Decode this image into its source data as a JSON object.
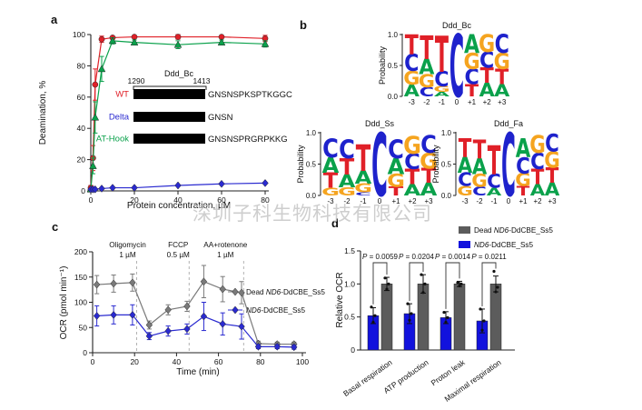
{
  "watermark": "深圳子科生物科技有限公司",
  "panel_labels": {
    "a": "a",
    "b": "b",
    "c": "c",
    "d": "d"
  },
  "panels": {
    "a": {
      "inset": {
        "title": "Ddd_Bc",
        "start": "1290",
        "end": "1413",
        "rows": [
          {
            "label": "WT",
            "color": "#e02028",
            "sequence": "GNSNSPKSPTKGGC"
          },
          {
            "label": "Delta",
            "color": "#2a2ad0",
            "sequence": "GNSN"
          },
          {
            "label": "AT-Hook",
            "color": "#0aa14b",
            "sequence": "GNSNSPRGRPKKG"
          }
        ]
      }
    }
  },
  "chart_data": [
    {
      "id": "a",
      "type": "line",
      "xlabel": "Protein concentration, µM",
      "ylabel": "Deamination, %",
      "xlim": [
        0,
        80
      ],
      "ylim": [
        0,
        100
      ],
      "xticks": [
        0,
        20,
        40,
        60,
        80
      ],
      "yticks": [
        0,
        20,
        40,
        60,
        80,
        100
      ],
      "x": [
        0,
        1,
        2,
        5,
        10,
        20,
        40,
        60,
        80
      ],
      "series": [
        {
          "name": "WT",
          "color": "#e02028",
          "marker": "circle",
          "values": [
            2,
            21,
            68,
            97,
            98,
            98.5,
            98.5,
            98.5,
            97.5
          ],
          "errors": [
            1.5,
            8,
            10,
            2,
            1,
            1,
            1.5,
            1,
            2
          ]
        },
        {
          "name": "AT-Hook",
          "color": "#0aa14b",
          "marker": "triangle",
          "values": [
            1,
            16,
            47,
            78,
            96,
            95,
            93.5,
            95,
            94
          ],
          "errors": [
            1,
            5,
            10,
            8,
            2,
            1.5,
            2.5,
            1.5,
            2
          ]
        },
        {
          "name": "Delta",
          "color": "#2a2ad0",
          "marker": "diamond",
          "values": [
            1,
            1,
            1,
            1.5,
            2,
            2,
            3.5,
            4.5,
            5
          ],
          "errors": [
            0.5,
            0.5,
            0.5,
            0.5,
            0.5,
            0.5,
            0.5,
            0.5,
            0.5
          ]
        }
      ]
    },
    {
      "id": "b1",
      "type": "logo",
      "title": "Ddd_Bc",
      "ylabel": "Probability",
      "yticks": [
        "1.0",
        "0.5",
        "0.0"
      ],
      "positions": [
        "-3",
        "-2",
        "-1",
        "0",
        "+1",
        "+2",
        "+3"
      ],
      "stacks": [
        [
          [
            "T",
            0.32
          ],
          [
            "C",
            0.27
          ],
          [
            "G",
            0.22
          ],
          [
            "A",
            0.19
          ]
        ],
        [
          [
            "T",
            0.38
          ],
          [
            "A",
            0.24
          ],
          [
            "G",
            0.21
          ],
          [
            "C",
            0.15
          ]
        ],
        [
          [
            "T",
            0.58
          ],
          [
            "C",
            0.24
          ],
          [
            "G",
            0.09
          ],
          [
            "A",
            0.07
          ]
        ],
        [
          [
            "C",
            1.0
          ]
        ],
        [
          [
            "A",
            0.3
          ],
          [
            "G",
            0.26
          ],
          [
            "C",
            0.24
          ],
          [
            "T",
            0.2
          ]
        ],
        [
          [
            "G",
            0.28
          ],
          [
            "C",
            0.26
          ],
          [
            "T",
            0.24
          ],
          [
            "A",
            0.22
          ]
        ],
        [
          [
            "C",
            0.3
          ],
          [
            "G",
            0.26
          ],
          [
            "T",
            0.24
          ],
          [
            "A",
            0.2
          ]
        ]
      ]
    },
    {
      "id": "b2",
      "type": "logo",
      "title": "Ddd_Ss",
      "ylabel": "Probability",
      "yticks": [
        "1.0",
        "0.5",
        "0.0"
      ],
      "positions": [
        "-3",
        "-2",
        "-1",
        "0",
        "+1",
        "+2",
        "+3"
      ],
      "stacks": [
        [
          [
            "C",
            0.3
          ],
          [
            "A",
            0.24
          ],
          [
            "T",
            0.24
          ],
          [
            "G",
            0.12
          ]
        ],
        [
          [
            "C",
            0.3
          ],
          [
            "T",
            0.26
          ],
          [
            "A",
            0.2
          ],
          [
            "G",
            0.13
          ]
        ],
        [
          [
            "T",
            0.42
          ],
          [
            "A",
            0.2
          ],
          [
            "G",
            0.14
          ],
          [
            "C",
            0.05
          ]
        ],
        [
          [
            "C",
            1.0
          ]
        ],
        [
          [
            "C",
            0.3
          ],
          [
            "A",
            0.25
          ],
          [
            "G",
            0.2
          ],
          [
            "T",
            0.14
          ]
        ],
        [
          [
            "G",
            0.28
          ],
          [
            "C",
            0.25
          ],
          [
            "T",
            0.24
          ],
          [
            "A",
            0.18
          ]
        ],
        [
          [
            "C",
            0.28
          ],
          [
            "G",
            0.25
          ],
          [
            "T",
            0.23
          ],
          [
            "A",
            0.2
          ]
        ]
      ]
    },
    {
      "id": "b3",
      "type": "logo",
      "title": "Ddd_Fa",
      "ylabel": "Probability",
      "yticks": [
        "1.0",
        "0.5",
        "0.0"
      ],
      "positions": [
        "-3",
        "-2",
        "-1",
        "0",
        "+1",
        "+2",
        "+3"
      ],
      "stacks": [
        [
          [
            "T",
            0.3
          ],
          [
            "A",
            0.25
          ],
          [
            "C",
            0.21
          ],
          [
            "G",
            0.15
          ]
        ],
        [
          [
            "T",
            0.3
          ],
          [
            "A",
            0.25
          ],
          [
            "G",
            0.2
          ],
          [
            "C",
            0.14
          ]
        ],
        [
          [
            "T",
            0.46
          ],
          [
            "C",
            0.22
          ],
          [
            "A",
            0.12
          ]
        ],
        [
          [
            "C",
            1.0
          ]
        ],
        [
          [
            "A",
            0.3
          ],
          [
            "C",
            0.26
          ],
          [
            "G",
            0.2
          ],
          [
            "T",
            0.15
          ]
        ],
        [
          [
            "G",
            0.28
          ],
          [
            "C",
            0.26
          ],
          [
            "T",
            0.24
          ],
          [
            "A",
            0.18
          ]
        ],
        [
          [
            "C",
            0.28
          ],
          [
            "G",
            0.26
          ],
          [
            "T",
            0.24
          ],
          [
            "A",
            0.2
          ]
        ]
      ]
    },
    {
      "id": "c",
      "type": "line",
      "xlabel": "Time (min)",
      "ylabel": "OCR (pmol min⁻¹)",
      "xlim": [
        0,
        100
      ],
      "ylim": [
        0,
        200
      ],
      "xticks": [
        0,
        20,
        40,
        60,
        80,
        100
      ],
      "yticks": [
        0,
        50,
        100,
        150,
        200
      ],
      "x": [
        2,
        10,
        19,
        27,
        36,
        45,
        53,
        62,
        71,
        79,
        88,
        96
      ],
      "series": [
        {
          "name": "Dead ND6-DdCBE_Ss5",
          "color": "#7a7a7a",
          "marker": "diamond",
          "values": [
            135,
            137,
            139,
            55,
            85,
            92,
            141,
            126,
            119,
            18,
            17,
            17
          ],
          "errors": [
            18,
            17,
            17,
            8,
            10,
            10,
            32,
            25,
            22,
            5,
            4,
            4
          ]
        },
        {
          "name": "ND6-DdCBE_Ss5",
          "color": "#2a2ad0",
          "marker": "diamond",
          "values": [
            73,
            75,
            75,
            33,
            43,
            47,
            72,
            57,
            52,
            12,
            12,
            11
          ],
          "errors": [
            20,
            18,
            20,
            7,
            10,
            10,
            28,
            22,
            25,
            4,
            4,
            4
          ]
        }
      ],
      "events": [
        {
          "lines": [
            "Oligomycin",
            "1 µM"
          ],
          "time": 21
        },
        {
          "lines": [
            "FCCP",
            "0.5 µM"
          ],
          "time": 46
        },
        {
          "lines": [
            "AA+rotenone",
            "1 µM"
          ],
          "time": 72
        }
      ],
      "legend": [
        "Dead ND6-DdCBE_Ss5",
        "ND6-DdCBE_Ss5"
      ]
    },
    {
      "id": "d",
      "type": "bar",
      "ylabel": "Relative OCR",
      "ylim": [
        0,
        1.5
      ],
      "yticks": [
        "0",
        "0.5",
        "1.0",
        "1.5"
      ],
      "categories": [
        "Basal respiration",
        "ATP production",
        "Proton leak",
        "Maximal respiration"
      ],
      "series": [
        {
          "name": "ND6-DdCBE_Ss5",
          "color": "#1212dd",
          "values": [
            0.52,
            0.55,
            0.49,
            0.44
          ],
          "errors": [
            0.12,
            0.15,
            0.09,
            0.18
          ],
          "points": [
            [
              0.65,
              0.52,
              0.42
            ],
            [
              0.7,
              0.55,
              0.45
            ],
            [
              0.57,
              0.49,
              0.42
            ],
            [
              0.62,
              0.44,
              0.3
            ]
          ]
        },
        {
          "name": "Dead ND6-DdCBE_Ss5",
          "color": "#5c5c5c",
          "values": [
            1.0,
            1.0,
            1.0,
            1.0
          ],
          "errors": [
            0.1,
            0.14,
            0.04,
            0.12
          ],
          "points": [
            [
              1.09,
              1.0,
              0.92
            ],
            [
              1.14,
              1.0,
              0.87
            ],
            [
              1.02,
              1.0,
              0.97
            ],
            [
              1.19,
              0.95,
              0.88
            ]
          ]
        }
      ],
      "p_values": [
        "P = 0.0059",
        "P = 0.0204",
        "P = 0.0014",
        "P = 0.0211"
      ],
      "legend": [
        "Dead ND6-DdCBE_Ss5",
        "ND6-DdCBE_Ss5"
      ]
    }
  ]
}
